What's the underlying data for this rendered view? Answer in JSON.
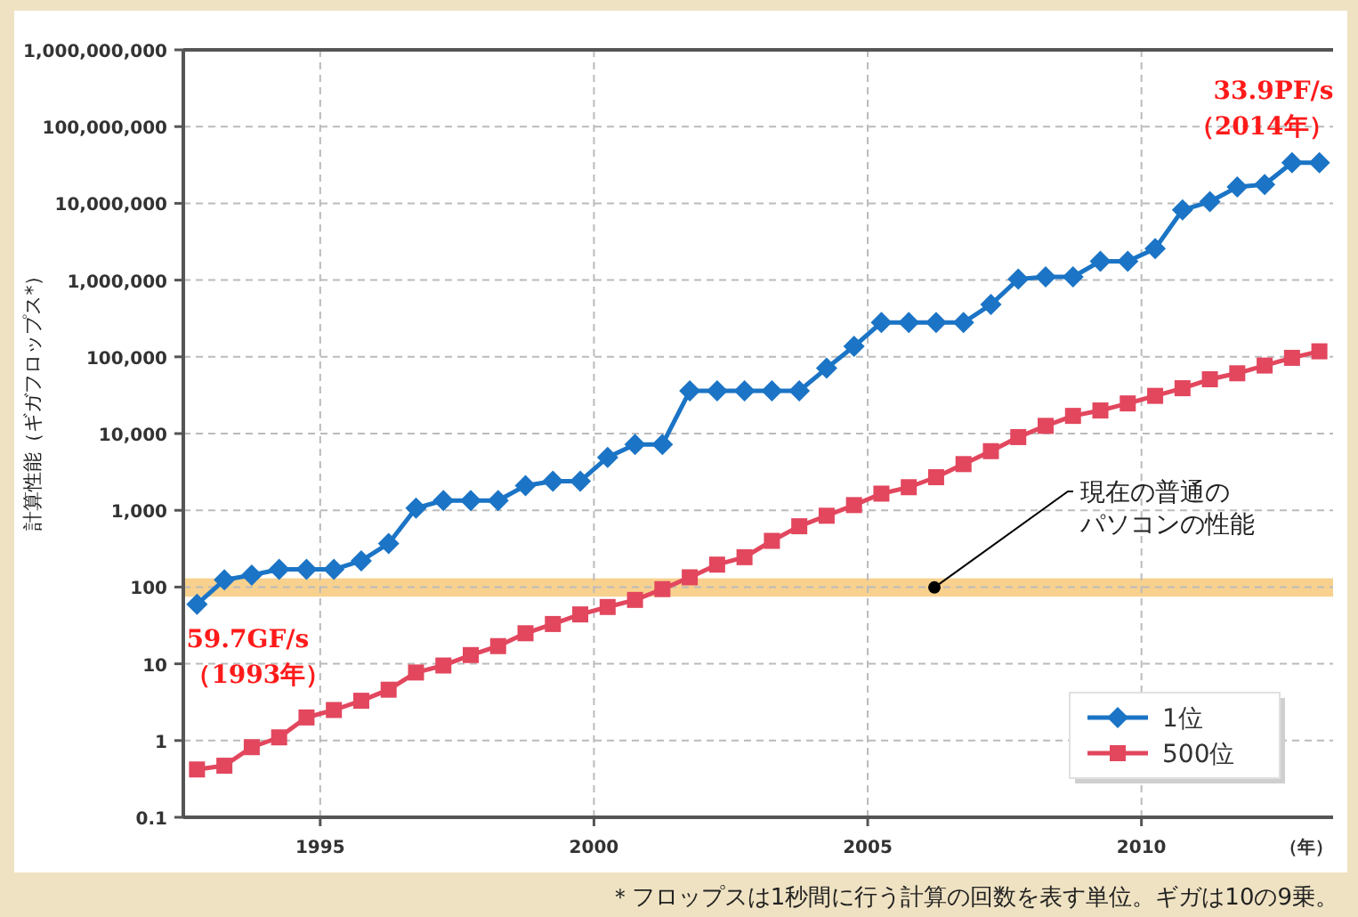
{
  "chart_data": {
    "type": "line",
    "ylabel": "計算性能（ギガフロップス*）",
    "xlabel": "（年）",
    "x": [
      1992.75,
      1993.25,
      1993.75,
      1994.25,
      1994.75,
      1995.25,
      1995.75,
      1996.25,
      1996.75,
      1997.25,
      1997.75,
      1998.25,
      1998.75,
      1999.25,
      1999.75,
      2000.25,
      2000.75,
      2001.25,
      2001.75,
      2002.25,
      2002.75,
      2003.25,
      2003.75,
      2004.25,
      2004.75,
      2005.25,
      2005.75,
      2006.25,
      2006.75,
      2007.25,
      2007.75,
      2008.25,
      2008.75,
      2009.25,
      2009.75,
      2010.25,
      2010.75,
      2011.25,
      2011.75,
      2012.25,
      2012.75,
      2013.25
    ],
    "series": [
      {
        "name": "1位",
        "color": "#1b74c5",
        "marker": "diamond",
        "values": [
          59.7,
          124,
          143,
          170,
          170,
          170,
          220,
          370,
          1070,
          1340,
          1340,
          1340,
          2100,
          2400,
          2400,
          4900,
          7200,
          7200,
          36000,
          36000,
          36000,
          36000,
          36000,
          71000,
          137000,
          280000,
          280000,
          280000,
          280000,
          480000,
          1030000,
          1100000,
          1100000,
          1760000,
          1760000,
          2570000,
          8200000,
          10500000,
          16300000,
          17600000,
          33900000,
          33900000
        ]
      },
      {
        "name": "500位",
        "color": "#e2475e",
        "marker": "square",
        "values": [
          0.42,
          0.47,
          0.82,
          1.1,
          2.0,
          2.5,
          3.3,
          4.6,
          7.7,
          9.5,
          13,
          17,
          25,
          33,
          44,
          55,
          68,
          94,
          134,
          196,
          245,
          400,
          620,
          850,
          1170,
          1650,
          2000,
          2700,
          4000,
          5900,
          9000,
          12600,
          17000,
          20000,
          24700,
          31000,
          39000,
          51000,
          61000,
          77000,
          97000,
          118000
        ]
      }
    ],
    "xlim": [
      1992.5,
      2013.5
    ],
    "xticks": [
      1995,
      2000,
      2005,
      2010
    ],
    "log": true,
    "ylim": [
      0.1,
      1000000000
    ],
    "yticks": [
      0.1,
      1,
      10,
      100,
      {
        "value": 1000,
        "label": "1,000"
      },
      {
        "value": 10000,
        "label": "10,000"
      },
      {
        "value": 100000,
        "label": "100,000"
      },
      {
        "value": 1000000,
        "label": "1,000,000"
      },
      {
        "value": 10000000,
        "label": "10,000,000"
      },
      {
        "value": 100000000,
        "label": "100,000,000"
      },
      {
        "value": 1000000000,
        "label": "1,000,000,000"
      }
    ],
    "grid": true,
    "legend": "bottom right",
    "line_style": "solid",
    "bands": [
      {
        "axis": "y",
        "from": 75,
        "to": 130,
        "color": "#f7c97a",
        "label": "現在の普通のパソコンの性能"
      }
    ],
    "annotations": [
      {
        "text": "59.7GF/s\n（1993年）",
        "x": 1992.75,
        "y": 59.7
      },
      {
        "text": "33.9PF/s\n（2014年）",
        "x": 2013.25,
        "y": 33900000
      },
      "＊フロップスは1秒間に行う計算の回数を表す単位。ギガは10の9乗。"
    ]
  }
}
